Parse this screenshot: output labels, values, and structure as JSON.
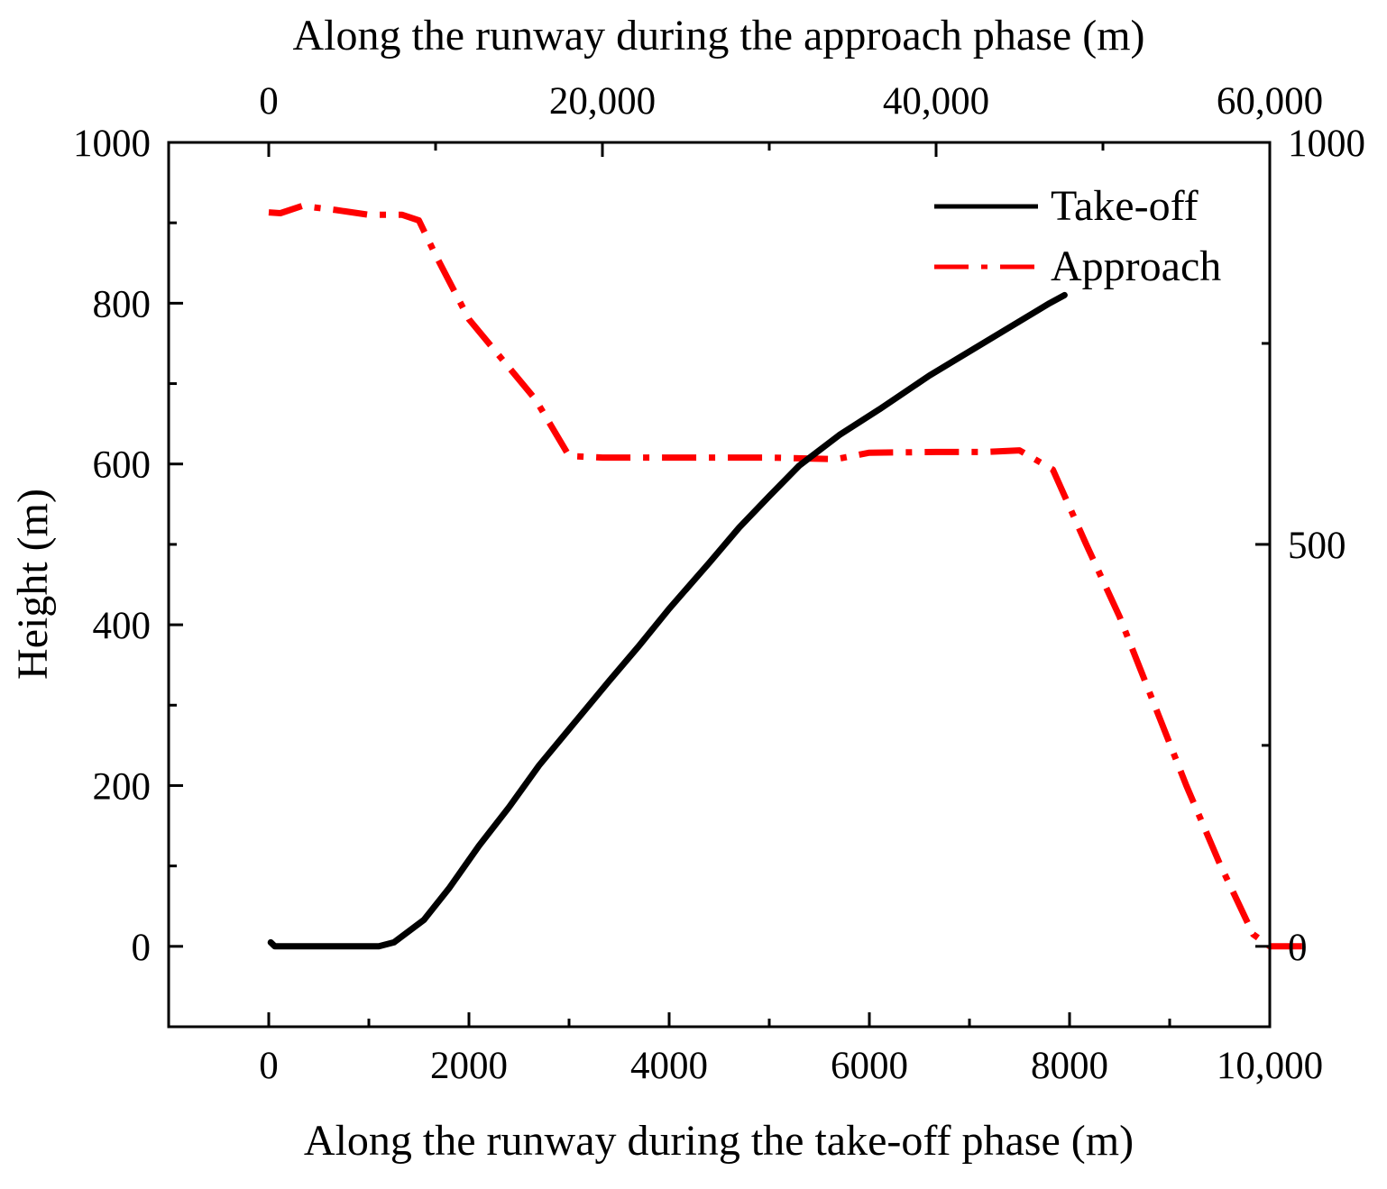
{
  "chart_data": {
    "type": "line",
    "title": "",
    "xlabel_bottom": "Along the runway during the take-off phase (m)",
    "xlabel_top": "Along the runway during the approach phase (m)",
    "ylabel_left": "Height (m)",
    "ylabel_right": "",
    "x_bottom_range": [
      -1000,
      10000
    ],
    "x_bottom_ticks": [
      0,
      2000,
      4000,
      6000,
      8000,
      10000
    ],
    "x_bottom_tick_labels": [
      "0",
      "2000",
      "4000",
      "6000",
      "8000",
      "10,000"
    ],
    "x_top_range": [
      -6000,
      60000
    ],
    "x_top_ticks": [
      0,
      20000,
      40000,
      60000
    ],
    "x_top_tick_labels": [
      "0",
      "20,000",
      "40,000",
      "60,000"
    ],
    "y_left_range": [
      -100,
      1000
    ],
    "y_left_ticks": [
      0,
      200,
      400,
      600,
      800,
      1000
    ],
    "y_left_tick_labels": [
      "0",
      "200",
      "400",
      "600",
      "800",
      "1000"
    ],
    "y_right_range": [
      -100,
      1000
    ],
    "y_right_ticks": [
      0,
      500,
      1000
    ],
    "y_right_tick_labels": [
      "0",
      "500",
      "1000"
    ],
    "grid": false,
    "legend_position": "top-right",
    "series": [
      {
        "name": "Take-off",
        "axis": "bottom-left",
        "color": "#000000",
        "style": "solid",
        "points": [
          [
            20,
            5
          ],
          [
            60,
            0
          ],
          [
            500,
            0
          ],
          [
            1100,
            0
          ],
          [
            1250,
            5
          ],
          [
            1550,
            33
          ],
          [
            1800,
            72
          ],
          [
            2100,
            125
          ],
          [
            2400,
            173
          ],
          [
            2700,
            225
          ],
          [
            3000,
            270
          ],
          [
            3400,
            330
          ],
          [
            3700,
            374
          ],
          [
            4000,
            420
          ],
          [
            4400,
            477
          ],
          [
            4700,
            521
          ],
          [
            5000,
            560
          ],
          [
            5300,
            598
          ],
          [
            5700,
            636
          ],
          [
            6100,
            668
          ],
          [
            6600,
            710
          ],
          [
            7200,
            755
          ],
          [
            7800,
            800
          ],
          [
            7950,
            810
          ]
        ]
      },
      {
        "name": "Approach",
        "axis": "top-left",
        "color": "#ff0000",
        "style": "dash-dot",
        "points": [
          [
            0,
            913
          ],
          [
            700,
            912
          ],
          [
            2000,
            921
          ],
          [
            4000,
            916
          ],
          [
            6000,
            910
          ],
          [
            8000,
            910
          ],
          [
            9000,
            903
          ],
          [
            10000,
            860
          ],
          [
            12000,
            780
          ],
          [
            14000,
            730
          ],
          [
            16000,
            680
          ],
          [
            18000,
            610
          ],
          [
            20000,
            608
          ],
          [
            25000,
            608
          ],
          [
            30000,
            608
          ],
          [
            34000,
            606
          ],
          [
            36000,
            614
          ],
          [
            40000,
            615
          ],
          [
            43000,
            615
          ],
          [
            45000,
            617
          ],
          [
            47000,
            593
          ],
          [
            49000,
            500
          ],
          [
            51000,
            410
          ],
          [
            53000,
            305
          ],
          [
            55000,
            200
          ],
          [
            57000,
            103
          ],
          [
            59000,
            15
          ],
          [
            60000,
            0
          ],
          [
            62000,
            0
          ]
        ]
      }
    ]
  }
}
